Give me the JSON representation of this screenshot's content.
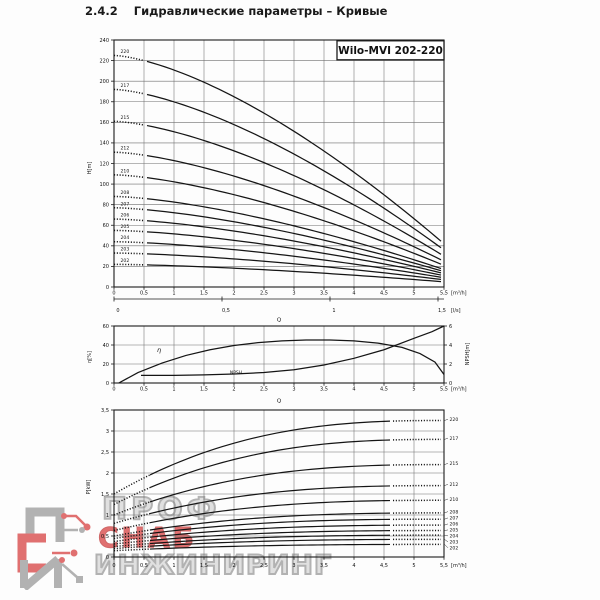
{
  "header": {
    "section": "2.4.2",
    "title": "Гидравлические параметры – Кривые"
  },
  "watermark": {
    "line1": "ПРОФ",
    "line2": "СНАБ",
    "line3": "ИНЖИНИРИНГ",
    "red": "#dc5858",
    "gray": "#a5a5a5"
  },
  "chart_data": [
    {
      "type": "line",
      "title": "Wilo-MVI 202-220",
      "ylabel": "H[m]",
      "ylim": [
        0,
        240
      ],
      "ytick_step": 20,
      "xlim": [
        0,
        5.5
      ],
      "xticks": [
        "0",
        "0,5",
        "1",
        "1,5",
        "2",
        "2,5",
        "3",
        "3,5",
        "4",
        "4,5",
        "5",
        "5,5"
      ],
      "xunit": "[m³/h]",
      "x2ticks": [
        "0",
        "0,5",
        "1",
        "1,5"
      ],
      "x2unit": "[l/s]",
      "xlabel": "Q",
      "grid": true,
      "series": [
        {
          "name": "220",
          "H_at_0": 225,
          "H_at_5p5": 42
        },
        {
          "name": "217",
          "H_at_0": 192,
          "H_at_5p5": 36
        },
        {
          "name": "215",
          "H_at_0": 161,
          "H_at_5p5": 30
        },
        {
          "name": "212",
          "H_at_0": 131,
          "H_at_5p5": 25
        },
        {
          "name": "210",
          "H_at_0": 109,
          "H_at_5p5": 21
        },
        {
          "name": "208",
          "H_at_0": 88,
          "H_at_5p5": 17
        },
        {
          "name": "207",
          "H_at_0": 77,
          "H_at_5p5": 15
        },
        {
          "name": "206",
          "H_at_0": 66,
          "H_at_5p5": 13
        },
        {
          "name": "205",
          "H_at_0": 55,
          "H_at_5p5": 11
        },
        {
          "name": "204",
          "H_at_0": 44,
          "H_at_5p5": 9
        },
        {
          "name": "203",
          "H_at_0": 33,
          "H_at_5p5": 7
        },
        {
          "name": "202",
          "H_at_0": 22,
          "H_at_5p5": 5
        }
      ]
    },
    {
      "type": "line",
      "ylabel": "η[%]",
      "ylabel_right": "NPSH[m]",
      "yticks_left": [
        60,
        40,
        20,
        0
      ],
      "yticks_right": [
        6,
        4,
        2,
        0
      ],
      "xticks": [
        "0",
        "0,5",
        "1",
        "1,5",
        "2",
        "2,5",
        "3",
        "3,5",
        "4",
        "4,5",
        "5",
        "5,5"
      ],
      "xunit": "[m³/h]",
      "xlabel": "Q",
      "grid": true,
      "eta_label": "η",
      "npsh_label": "NPSH",
      "eta_points": [
        [
          0.08,
          0
        ],
        [
          0.4,
          11
        ],
        [
          0.8,
          21
        ],
        [
          1.2,
          29
        ],
        [
          1.6,
          35
        ],
        [
          2.0,
          39.5
        ],
        [
          2.4,
          42.5
        ],
        [
          2.8,
          44.3
        ],
        [
          3.2,
          45.2
        ],
        [
          3.6,
          45.3
        ],
        [
          4.0,
          44.3
        ],
        [
          4.4,
          42
        ],
        [
          4.8,
          37.5
        ],
        [
          5.1,
          31
        ],
        [
          5.35,
          22
        ],
        [
          5.5,
          9
        ]
      ],
      "npsh_points": [
        [
          0.45,
          0.8
        ],
        [
          1.0,
          0.8
        ],
        [
          1.5,
          0.85
        ],
        [
          2.0,
          0.95
        ],
        [
          2.5,
          1.1
        ],
        [
          3.0,
          1.4
        ],
        [
          3.5,
          1.9
        ],
        [
          4.0,
          2.6
        ],
        [
          4.5,
          3.5
        ],
        [
          5.0,
          4.7
        ],
        [
          5.3,
          5.4
        ],
        [
          5.5,
          6.0
        ]
      ]
    },
    {
      "type": "line",
      "ylabel": "P[kW]",
      "ylim": [
        0,
        3.5
      ],
      "yticks": [
        "3,5",
        "3",
        "2,5",
        "2",
        "1,5",
        "1",
        "0,5",
        "0"
      ],
      "xticks": [
        "0",
        "0,5",
        "1",
        "1,5",
        "2",
        "2,5",
        "3",
        "3,5",
        "4",
        "4,5",
        "5",
        "5,5"
      ],
      "xunit": "[m³/h]",
      "grid": true,
      "series": [
        {
          "name": "220",
          "P_at_0": 1.5,
          "P_at_5p5": 3.25
        },
        {
          "name": "217",
          "P_at_0": 1.25,
          "P_at_5p5": 2.8
        },
        {
          "name": "215",
          "P_at_0": 1.0,
          "P_at_5p5": 2.2
        },
        {
          "name": "212",
          "P_at_0": 0.8,
          "P_at_5p5": 1.7
        },
        {
          "name": "210",
          "P_at_0": 0.63,
          "P_at_5p5": 1.35
        },
        {
          "name": "208",
          "P_at_0": 0.5,
          "P_at_5p5": 1.05
        },
        {
          "name": "207",
          "P_at_0": 0.44,
          "P_at_5p5": 0.9
        },
        {
          "name": "206",
          "P_at_0": 0.37,
          "P_at_5p5": 0.76
        },
        {
          "name": "205",
          "P_at_0": 0.31,
          "P_at_5p5": 0.63
        },
        {
          "name": "204",
          "P_at_0": 0.25,
          "P_at_5p5": 0.52
        },
        {
          "name": "203",
          "P_at_0": 0.2,
          "P_at_5p5": 0.42
        },
        {
          "name": "202",
          "P_at_0": 0.15,
          "P_at_5p5": 0.3
        }
      ]
    }
  ]
}
